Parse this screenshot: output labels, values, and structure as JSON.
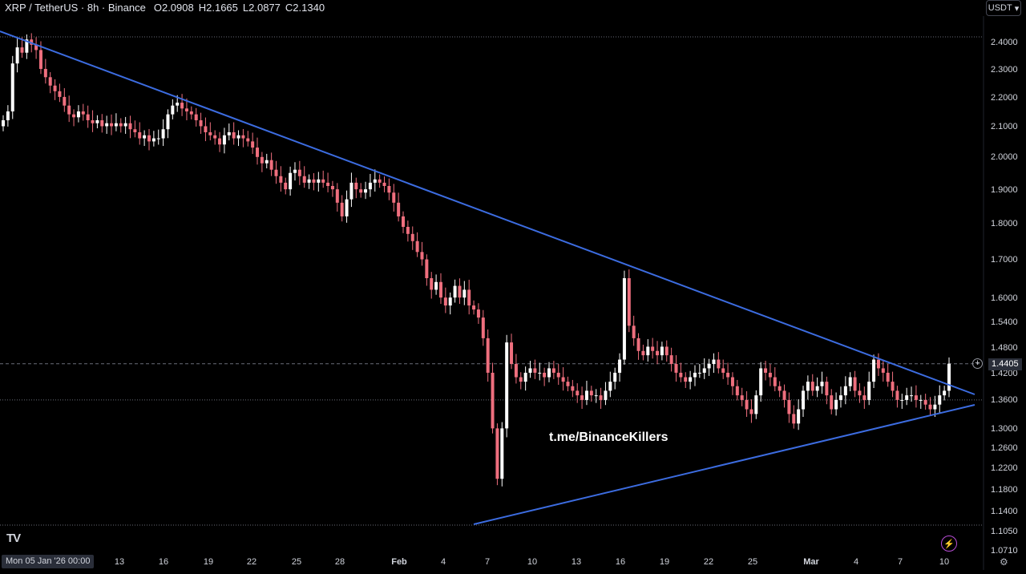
{
  "header": {
    "symbol": "XRP / TetherUS · 8h · Binance",
    "open_label": "O",
    "open": "2.0908",
    "high_label": "H",
    "high": "2.1665",
    "low_label": "L",
    "low": "2.0877",
    "close_label": "C",
    "close": "2.1340"
  },
  "currency_button": {
    "label": "USDT",
    "icon": "chevron-down-icon"
  },
  "watermark": "t.me/BinanceKillers",
  "logo": "TV",
  "date_badge": "Mon 05 Jan '26   00:00",
  "price_badge": "1.4405",
  "colors": {
    "up": "#ffffff",
    "down": "#ef6f7e",
    "trendline": "#3c6ce0",
    "background": "#000000"
  },
  "chart_data": {
    "type": "candlestick",
    "symbol": "XRP / TetherUS",
    "interval": "8h",
    "exchange": "Binance",
    "y_scale": "log",
    "ylim": [
      1.07,
      2.44
    ],
    "y_ticks": [
      "2.4000",
      "2.3000",
      "2.2000",
      "2.1000",
      "2.0000",
      "1.9000",
      "1.8000",
      "1.7000",
      "1.6000",
      "1.5400",
      "1.4800",
      "1.4200",
      "1.3600",
      "1.3000",
      "1.2600",
      "1.2200",
      "1.1800",
      "1.1400",
      "1.1050",
      "1.0710"
    ],
    "x_ticks": [
      "13",
      "16",
      "19",
      "22",
      "25",
      "28",
      "Feb",
      "4",
      "7",
      "10",
      "13",
      "16",
      "19",
      "22",
      "25",
      "Mar",
      "4",
      "7",
      "10"
    ],
    "last_price": 1.4405,
    "horizontal_levels": [
      2.42,
      1.4405,
      1.36,
      1.115
    ],
    "trendlines": [
      {
        "name": "descending resistance",
        "from": [
          "2026-01-05",
          2.43
        ],
        "to": [
          "2026-03-11",
          1.37
        ]
      },
      {
        "name": "ascending support",
        "from": [
          "2026-02-06",
          1.115
        ],
        "to": [
          "2026-03-11",
          1.35
        ]
      }
    ],
    "candles_close": [
      2.12,
      2.15,
      2.32,
      2.38,
      2.36,
      2.41,
      2.39,
      2.37,
      2.3,
      2.27,
      2.24,
      2.22,
      2.2,
      2.17,
      2.14,
      2.13,
      2.15,
      2.14,
      2.12,
      2.11,
      2.12,
      2.1,
      2.11,
      2.1,
      2.11,
      2.1,
      2.11,
      2.09,
      2.08,
      2.06,
      2.07,
      2.05,
      2.06,
      2.06,
      2.09,
      2.14,
      2.17,
      2.18,
      2.16,
      2.15,
      2.14,
      2.12,
      2.1,
      2.08,
      2.07,
      2.06,
      2.04,
      2.07,
      2.08,
      2.06,
      2.07,
      2.06,
      2.05,
      2.03,
      2.0,
      1.98,
      1.99,
      1.96,
      1.94,
      1.92,
      1.9,
      1.95,
      1.96,
      1.94,
      1.92,
      1.93,
      1.92,
      1.93,
      1.92,
      1.91,
      1.9,
      1.86,
      1.82,
      1.87,
      1.92,
      1.9,
      1.89,
      1.9,
      1.92,
      1.93,
      1.92,
      1.91,
      1.89,
      1.86,
      1.82,
      1.79,
      1.77,
      1.75,
      1.72,
      1.7,
      1.65,
      1.62,
      1.64,
      1.6,
      1.58,
      1.6,
      1.63,
      1.6,
      1.62,
      1.58,
      1.57,
      1.55,
      1.5,
      1.42,
      1.3,
      1.2,
      1.3,
      1.49,
      1.44,
      1.41,
      1.4,
      1.42,
      1.43,
      1.42,
      1.42,
      1.41,
      1.43,
      1.42,
      1.41,
      1.4,
      1.39,
      1.38,
      1.37,
      1.36,
      1.38,
      1.37,
      1.37,
      1.36,
      1.38,
      1.4,
      1.42,
      1.45,
      1.65,
      1.53,
      1.5,
      1.47,
      1.46,
      1.48,
      1.47,
      1.46,
      1.48,
      1.46,
      1.44,
      1.42,
      1.41,
      1.4,
      1.41,
      1.42,
      1.42,
      1.43,
      1.44,
      1.45,
      1.43,
      1.42,
      1.41,
      1.39,
      1.37,
      1.36,
      1.34,
      1.33,
      1.37,
      1.43,
      1.42,
      1.41,
      1.39,
      1.38,
      1.36,
      1.33,
      1.31,
      1.34,
      1.38,
      1.4,
      1.38,
      1.39,
      1.4,
      1.37,
      1.34,
      1.36,
      1.37,
      1.39,
      1.41,
      1.38,
      1.37,
      1.36,
      1.4,
      1.45,
      1.43,
      1.42,
      1.4,
      1.38,
      1.36,
      1.36,
      1.37,
      1.37,
      1.36,
      1.36,
      1.35,
      1.34,
      1.35,
      1.37,
      1.38,
      1.4405
    ]
  }
}
